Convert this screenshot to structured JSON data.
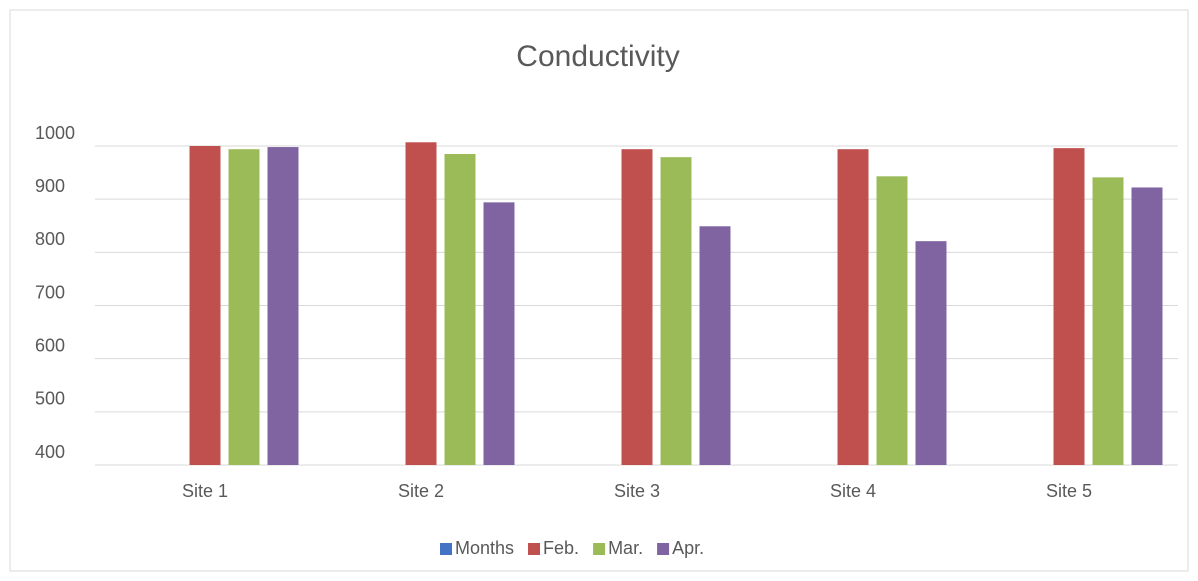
{
  "chart_data": {
    "type": "bar",
    "title": "Conductivity",
    "categories": [
      "Site 1",
      "Site 2",
      "Site 3",
      "Site 4",
      "Site 5"
    ],
    "series": [
      {
        "name": "Months",
        "color": "#4472c4",
        "values": [
          null,
          null,
          null,
          null,
          null
        ]
      },
      {
        "name": "Feb.",
        "color": "#c0504d",
        "values": [
          1000,
          1007,
          994,
          994,
          996
        ]
      },
      {
        "name": "Mar.",
        "color": "#9bbb59",
        "values": [
          994,
          985,
          979,
          943,
          941
        ]
      },
      {
        "name": "Apr.",
        "color": "#8064a2",
        "values": [
          998,
          894,
          849,
          821,
          922
        ]
      }
    ],
    "ylim": [
      400,
      1000
    ],
    "yticks": [
      400,
      500,
      600,
      700,
      800,
      900,
      1000
    ],
    "grid": true,
    "legend": "bottom"
  }
}
